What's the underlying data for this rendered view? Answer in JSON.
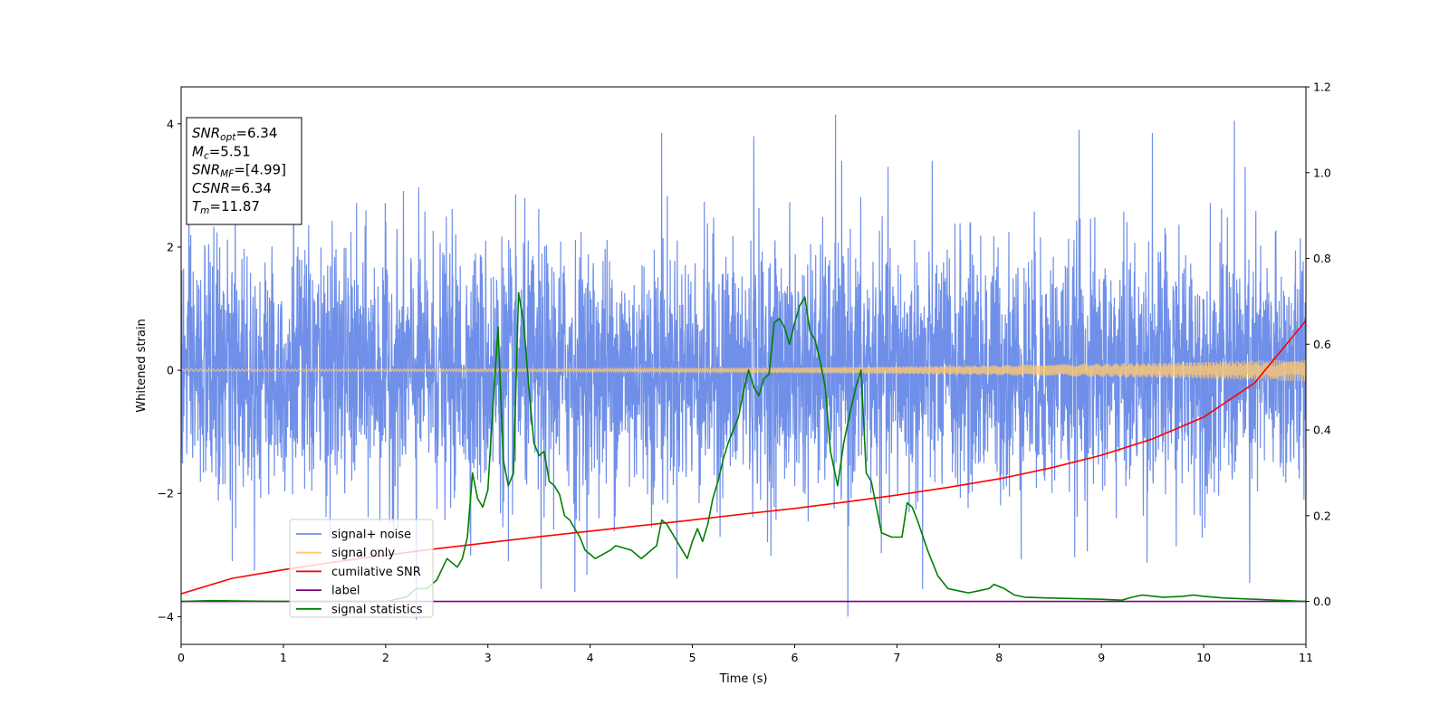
{
  "chart_data": {
    "type": "line",
    "xlabel": "Time (s)",
    "ylabel": "Whitened strain",
    "xlim": [
      0,
      11
    ],
    "ylim": [
      -4.45,
      4.6
    ],
    "y2lim": [
      -0.1,
      1.2
    ],
    "x_ticks": [
      "0",
      "1",
      "2",
      "3",
      "4",
      "5",
      "6",
      "7",
      "8",
      "9",
      "10",
      "11"
    ],
    "y_ticks": [
      {
        "value": 4,
        "label": "4"
      },
      {
        "value": 2,
        "label": "2"
      },
      {
        "value": 0,
        "label": "0"
      },
      {
        "value": -2,
        "label": "−2"
      },
      {
        "value": -4,
        "label": "−4"
      }
    ],
    "y2_ticks": [
      "0.0",
      "0.2",
      "0.4",
      "0.6",
      "0.8",
      "1.0",
      "1.2"
    ],
    "info_box": [
      {
        "sym": "SNR",
        "sub": "opt",
        "rest": "=6.34"
      },
      {
        "sym": "M",
        "sub": "c",
        "rest": "=5.51"
      },
      {
        "sym": "SNR",
        "sub": "MF",
        "rest": "=[4.99]"
      },
      {
        "sym": "CSNR",
        "sub": "",
        "rest": "=6.34"
      },
      {
        "sym": "T",
        "sub": "m",
        "rest": "=11.87"
      }
    ],
    "legend": {
      "position": "lower-left",
      "entries": [
        {
          "label": "signal+ noise",
          "color": "#6f8fe8"
        },
        {
          "label": "signal only",
          "color": "#ffc870"
        },
        {
          "label": "cumilative SNR",
          "color": "#ff0000"
        },
        {
          "label": "label",
          "color": "#800080"
        },
        {
          "label": "signal statistics",
          "color": "#008000"
        }
      ]
    },
    "series": [
      {
        "name": "signal+ noise",
        "axis": "left",
        "color": "#6f8fe8",
        "kind": "noise",
        "sigma": 1.0,
        "peaks": [
          [
            2.3,
            -4.05
          ],
          [
            3.85,
            -3.6
          ],
          [
            4.7,
            3.85
          ],
          [
            5.6,
            3.8
          ],
          [
            6.4,
            4.15
          ],
          [
            6.52,
            -4.0
          ],
          [
            7.25,
            -3.55
          ],
          [
            8.78,
            3.9
          ],
          [
            9.5,
            3.85
          ],
          [
            10.3,
            4.05
          ],
          [
            10.45,
            -3.45
          ],
          [
            0.5,
            -3.1
          ],
          [
            1.1,
            3.3
          ],
          [
            3.52,
            -3.55
          ],
          [
            3.2,
            -3.1
          ]
        ]
      },
      {
        "name": "signal only",
        "axis": "left",
        "color": "#ffc870",
        "kind": "chirp",
        "amp_start": 0.02,
        "amp_end": 0.18
      },
      {
        "name": "cumilative SNR",
        "axis": "right",
        "color": "#ff0000",
        "x": [
          0,
          0.5,
          1,
          1.5,
          2,
          2.5,
          3,
          3.5,
          4,
          4.5,
          5,
          5.5,
          6,
          6.5,
          7,
          7.5,
          8,
          8.5,
          9,
          9.5,
          10,
          10.5,
          11
        ],
        "y": [
          0.018,
          0.054,
          0.074,
          0.092,
          0.108,
          0.123,
          0.137,
          0.151,
          0.164,
          0.177,
          0.19,
          0.204,
          0.217,
          0.232,
          0.248,
          0.266,
          0.286,
          0.311,
          0.341,
          0.379,
          0.43,
          0.51,
          0.655
        ]
      },
      {
        "name": "label",
        "axis": "right",
        "color": "#800080",
        "x": [
          0,
          11
        ],
        "y": [
          0.0,
          0.0
        ]
      },
      {
        "name": "signal statistics",
        "axis": "right",
        "color": "#008000",
        "x": [
          0,
          0.3,
          1,
          2,
          2.2,
          2.3,
          2.4,
          2.5,
          2.6,
          2.7,
          2.75,
          2.8,
          2.85,
          2.9,
          2.95,
          3.0,
          3.05,
          3.1,
          3.15,
          3.2,
          3.25,
          3.3,
          3.35,
          3.4,
          3.45,
          3.5,
          3.55,
          3.6,
          3.65,
          3.7,
          3.75,
          3.8,
          3.85,
          3.9,
          3.95,
          4.05,
          4.2,
          4.25,
          4.4,
          4.5,
          4.55,
          4.65,
          4.7,
          4.75,
          4.8,
          4.85,
          4.95,
          5.0,
          5.05,
          5.1,
          5.15,
          5.2,
          5.25,
          5.3,
          5.35,
          5.4,
          5.45,
          5.5,
          5.55,
          5.6,
          5.65,
          5.7,
          5.75,
          5.8,
          5.85,
          5.9,
          5.95,
          6.0,
          6.05,
          6.1,
          6.15,
          6.2,
          6.25,
          6.3,
          6.35,
          6.42,
          6.48,
          6.55,
          6.6,
          6.65,
          6.7,
          6.75,
          6.85,
          6.95,
          7.05,
          7.1,
          7.15,
          7.2,
          7.3,
          7.4,
          7.5,
          7.6,
          7.7,
          7.8,
          7.9,
          7.95,
          8.05,
          8.15,
          8.25,
          8.5,
          9.0,
          9.2,
          9.3,
          9.4,
          9.6,
          9.8,
          9.9,
          10.0,
          10.2,
          10.5,
          11.0
        ],
        "y": [
          0.0,
          0.002,
          0.0,
          0.0,
          0.01,
          0.03,
          0.03,
          0.05,
          0.1,
          0.08,
          0.1,
          0.15,
          0.3,
          0.24,
          0.22,
          0.26,
          0.46,
          0.64,
          0.33,
          0.27,
          0.3,
          0.72,
          0.65,
          0.5,
          0.37,
          0.34,
          0.35,
          0.28,
          0.27,
          0.25,
          0.2,
          0.19,
          0.17,
          0.15,
          0.12,
          0.1,
          0.12,
          0.13,
          0.12,
          0.1,
          0.11,
          0.13,
          0.19,
          0.18,
          0.16,
          0.14,
          0.1,
          0.14,
          0.17,
          0.14,
          0.18,
          0.24,
          0.28,
          0.33,
          0.37,
          0.4,
          0.43,
          0.49,
          0.54,
          0.5,
          0.48,
          0.52,
          0.53,
          0.65,
          0.66,
          0.64,
          0.6,
          0.65,
          0.69,
          0.71,
          0.63,
          0.61,
          0.56,
          0.5,
          0.35,
          0.27,
          0.37,
          0.45,
          0.5,
          0.54,
          0.3,
          0.28,
          0.16,
          0.15,
          0.15,
          0.23,
          0.22,
          0.19,
          0.12,
          0.06,
          0.03,
          0.025,
          0.02,
          0.025,
          0.03,
          0.04,
          0.03,
          0.015,
          0.01,
          0.008,
          0.005,
          0.003,
          0.01,
          0.015,
          0.01,
          0.012,
          0.015,
          0.012,
          0.008,
          0.005,
          0.0
        ]
      }
    ]
  }
}
